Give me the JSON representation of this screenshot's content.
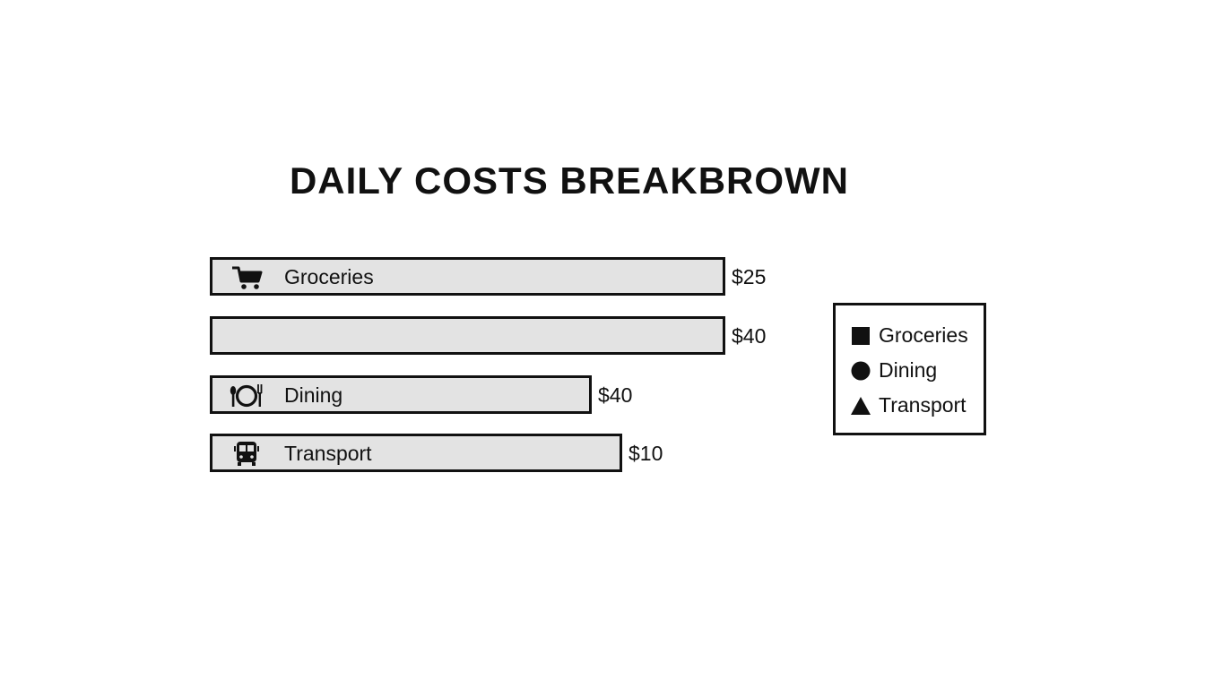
{
  "chart_data": {
    "type": "bar",
    "orientation": "horizontal",
    "title": "DAILY COSTS BREAKBROWN",
    "xlabel": "",
    "ylabel": "",
    "grid": false,
    "legend_position": "right",
    "bars": [
      {
        "label": "Groceries",
        "value": 25,
        "value_label": "$25",
        "icon": "shopping-cart-icon",
        "bar_scale": 1.0
      },
      {
        "label": "",
        "value": 40,
        "value_label": "$40",
        "icon": "",
        "bar_scale": 1.0
      },
      {
        "label": "Dining",
        "value": 40,
        "value_label": "$40",
        "icon": "plate-fork-knife-icon",
        "bar_scale": 0.74
      },
      {
        "label": "Transport",
        "value": 10,
        "value_label": "$10",
        "icon": "bus-icon",
        "bar_scale": 0.8
      }
    ]
  },
  "legend": {
    "items": [
      {
        "label": "Groceries",
        "symbol": "square"
      },
      {
        "label": "Dining",
        "symbol": "circle"
      },
      {
        "label": "Transport",
        "symbol": "triangle"
      }
    ]
  },
  "colors": {
    "bar_fill": "#e3e3e3",
    "outline": "#111111",
    "background": "#ffffff"
  }
}
